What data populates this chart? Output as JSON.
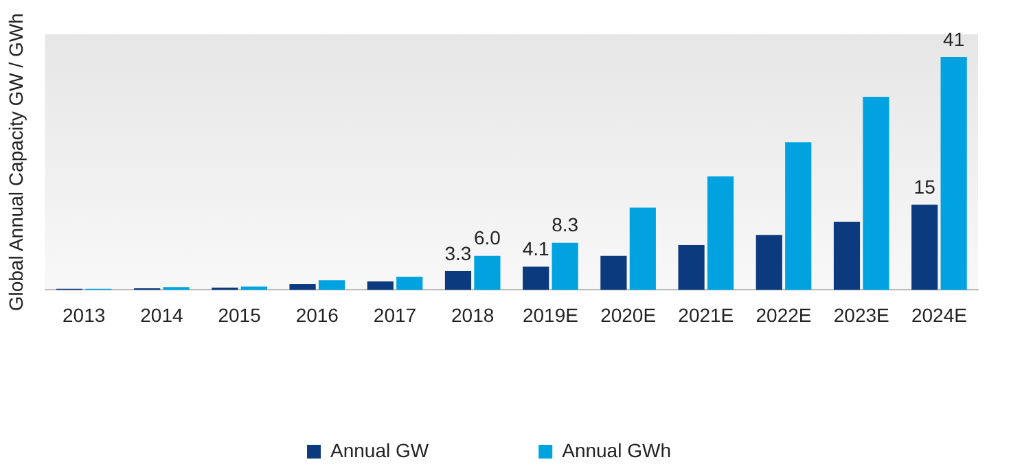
{
  "chart_data": {
    "type": "bar",
    "ylabel": "Global Annual Capacity GW / GWh",
    "categories": [
      "2013",
      "2014",
      "2015",
      "2016",
      "2017",
      "2018",
      "2019E",
      "2020E",
      "2021E",
      "2022E",
      "2023E",
      "2024E"
    ],
    "series": [
      {
        "name": "Annual GW",
        "color": "#0b3a7e",
        "values": [
          0.2,
          0.3,
          0.4,
          1.0,
          1.5,
          3.3,
          4.1,
          6.0,
          7.9,
          9.7,
          12,
          15
        ],
        "value_labels": [
          null,
          null,
          null,
          null,
          null,
          "3.3",
          "4.1",
          null,
          null,
          null,
          null,
          "15"
        ]
      },
      {
        "name": "Annual GWh",
        "color": "#00a3e0",
        "values": [
          0.2,
          0.5,
          0.6,
          1.7,
          2.3,
          6.0,
          8.3,
          14.5,
          20,
          26,
          34,
          41
        ],
        "value_labels": [
          null,
          null,
          null,
          null,
          null,
          "6.0",
          "8.3",
          null,
          null,
          null,
          null,
          "41"
        ]
      }
    ],
    "legend": "bottom",
    "grid": false
  }
}
